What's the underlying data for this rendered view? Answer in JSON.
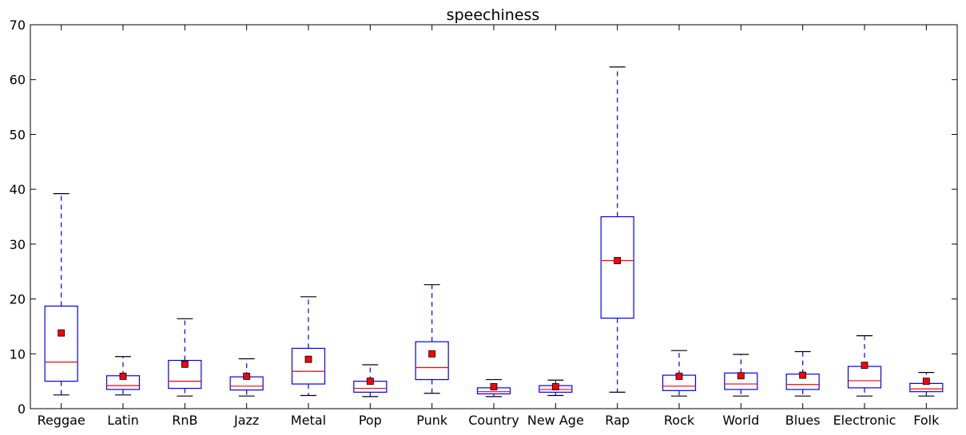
{
  "chart_data": {
    "type": "box",
    "title": "speechiness",
    "xlabel": "",
    "ylabel": "",
    "ylim": [
      0,
      70
    ],
    "yticks": [
      0,
      10,
      20,
      30,
      40,
      50,
      60,
      70
    ],
    "ytick_labels": [
      "0",
      "10",
      "20",
      "30",
      "40",
      "50",
      "60",
      "70"
    ],
    "grid": false,
    "categories": [
      "Reggae",
      "Latin",
      "RnB",
      "Jazz",
      "Metal",
      "Pop",
      "Punk",
      "Country",
      "New Age",
      "Rap",
      "Rock",
      "World",
      "Blues",
      "Electronic",
      "Folk"
    ],
    "boxes": [
      {
        "whisker_low": 2.5,
        "q1": 5.0,
        "median": 8.5,
        "q3": 18.7,
        "whisker_high": 39.2,
        "mean": 13.8
      },
      {
        "whisker_low": 2.5,
        "q1": 3.5,
        "median": 4.2,
        "q3": 6.0,
        "whisker_high": 9.5,
        "mean": 5.9
      },
      {
        "whisker_low": 2.3,
        "q1": 3.7,
        "median": 5.0,
        "q3": 8.8,
        "whisker_high": 16.4,
        "mean": 8.1
      },
      {
        "whisker_low": 2.3,
        "q1": 3.4,
        "median": 4.1,
        "q3": 5.8,
        "whisker_high": 9.1,
        "mean": 5.9
      },
      {
        "whisker_low": 2.4,
        "q1": 4.5,
        "median": 6.8,
        "q3": 11.0,
        "whisker_high": 20.4,
        "mean": 9.0
      },
      {
        "whisker_low": 2.2,
        "q1": 3.0,
        "median": 3.7,
        "q3": 5.0,
        "whisker_high": 8.0,
        "mean": 5.0
      },
      {
        "whisker_low": 2.8,
        "q1": 5.3,
        "median": 7.5,
        "q3": 12.2,
        "whisker_high": 22.6,
        "mean": 10.0
      },
      {
        "whisker_low": 2.2,
        "q1": 2.7,
        "median": 3.1,
        "q3": 3.8,
        "whisker_high": 5.3,
        "mean": 4.0
      },
      {
        "whisker_low": 2.4,
        "q1": 3.0,
        "median": 3.5,
        "q3": 4.2,
        "whisker_high": 5.2,
        "mean": 4.0
      },
      {
        "whisker_low": 3.0,
        "q1": 16.5,
        "median": 27.0,
        "q3": 35.0,
        "whisker_high": 62.3,
        "mean": 27.0
      },
      {
        "whisker_low": 2.3,
        "q1": 3.3,
        "median": 4.1,
        "q3": 6.1,
        "whisker_high": 10.6,
        "mean": 5.9
      },
      {
        "whisker_low": 2.3,
        "q1": 3.5,
        "median": 4.5,
        "q3": 6.5,
        "whisker_high": 9.9,
        "mean": 6.0
      },
      {
        "whisker_low": 2.3,
        "q1": 3.5,
        "median": 4.4,
        "q3": 6.3,
        "whisker_high": 10.4,
        "mean": 6.1
      },
      {
        "whisker_low": 2.3,
        "q1": 3.8,
        "median": 5.1,
        "q3": 7.7,
        "whisker_high": 13.3,
        "mean": 7.9
      },
      {
        "whisker_low": 2.3,
        "q1": 3.1,
        "median": 3.6,
        "q3": 4.6,
        "whisker_high": 6.6,
        "mean": 5.0
      }
    ],
    "colors": {
      "box": "#0000ff",
      "median": "#ff0000",
      "mean_marker": "#ff0000",
      "whisker": "#0000ff",
      "cap": "#000000",
      "axis": "#000000"
    }
  }
}
